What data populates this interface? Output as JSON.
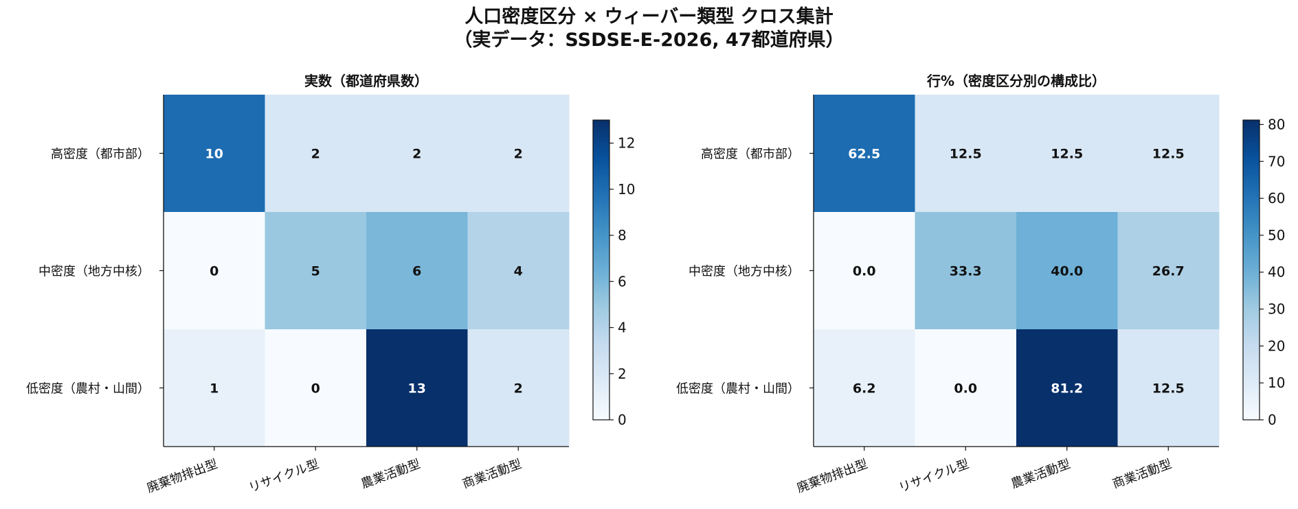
{
  "figure": {
    "title_line1": "人口密度区分 × ウィーバー類型 クロス集計",
    "title_line2": "（実データ：SSDSE-E-2026, 47都道府県）"
  },
  "chart_data": [
    {
      "type": "heatmap",
      "title": "実数（都道府県数）",
      "rows": [
        "高密度（都市部）",
        "中密度（地方中核）",
        "低密度（農村・山間）"
      ],
      "columns": [
        "廃棄物排出型",
        "リサイクル型",
        "農業活動型",
        "商業活動型"
      ],
      "values": [
        [
          10,
          2,
          2,
          2
        ],
        [
          0,
          5,
          6,
          4
        ],
        [
          1,
          0,
          13,
          2
        ]
      ],
      "labels": [
        [
          "10",
          "2",
          "2",
          "2"
        ],
        [
          "0",
          "5",
          "6",
          "4"
        ],
        [
          "1",
          "0",
          "13",
          "2"
        ]
      ],
      "colormap": "Blues",
      "vmin": 0,
      "vmax": 13,
      "colorbar_ticks": [
        0,
        2,
        4,
        6,
        8,
        10,
        12
      ],
      "colors": {
        "low": "#f7fbff",
        "high": "#08306b"
      }
    },
    {
      "type": "heatmap",
      "title": "行%（密度区分別の構成比）",
      "rows": [
        "高密度（都市部）",
        "中密度（地方中核）",
        "低密度（農村・山間）"
      ],
      "columns": [
        "廃棄物排出型",
        "リサイクル型",
        "農業活動型",
        "商業活動型"
      ],
      "values": [
        [
          62.5,
          12.5,
          12.5,
          12.5
        ],
        [
          0.0,
          33.3,
          40.0,
          26.7
        ],
        [
          6.2,
          0.0,
          81.2,
          12.5
        ]
      ],
      "labels": [
        [
          "62.5",
          "12.5",
          "12.5",
          "12.5"
        ],
        [
          "0.0",
          "33.3",
          "40.0",
          "26.7"
        ],
        [
          "6.2",
          "0.0",
          "81.2",
          "12.5"
        ]
      ],
      "colormap": "Blues",
      "vmin": 0,
      "vmax": 81.2,
      "colorbar_ticks": [
        0,
        10,
        20,
        30,
        40,
        50,
        60,
        70,
        80
      ],
      "colors": {
        "low": "#f7fbff",
        "high": "#08306b"
      }
    }
  ]
}
